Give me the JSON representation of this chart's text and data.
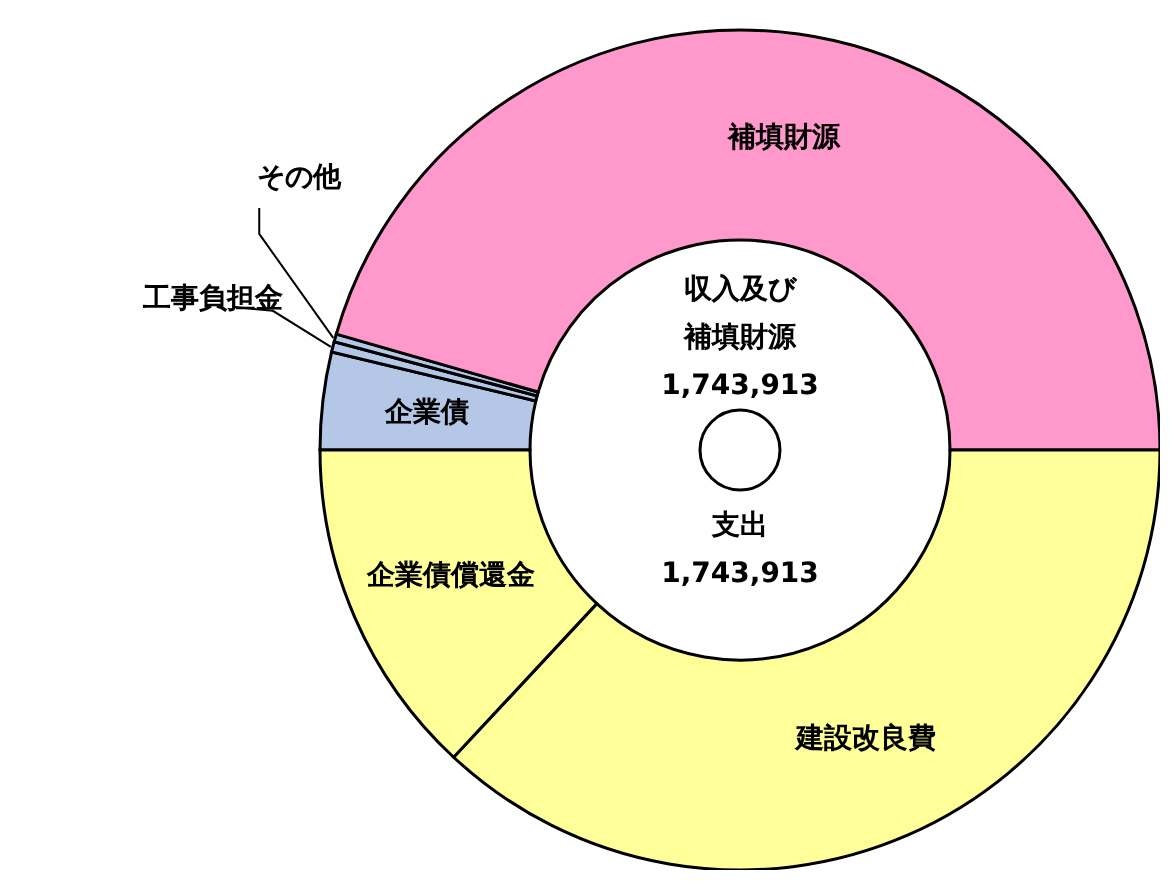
{
  "chart_data": {
    "type": "donut",
    "categories": [
      "企業債",
      "工事負担金",
      "その他",
      "補填財源",
      "建設改良費",
      "企業債償還金"
    ],
    "values": [
      3.75,
      0.4,
      0.3,
      45.55,
      36.94,
      13.06
    ],
    "colors": [
      "#b4c7e7",
      "#b4c7e7",
      "#b4c7e7",
      "#ff99cc",
      "#ffff99",
      "#ffff99"
    ],
    "annotations": [
      "収入及び補填財源",
      "1,743,913",
      "支出",
      "1,743,913"
    ]
  }
}
